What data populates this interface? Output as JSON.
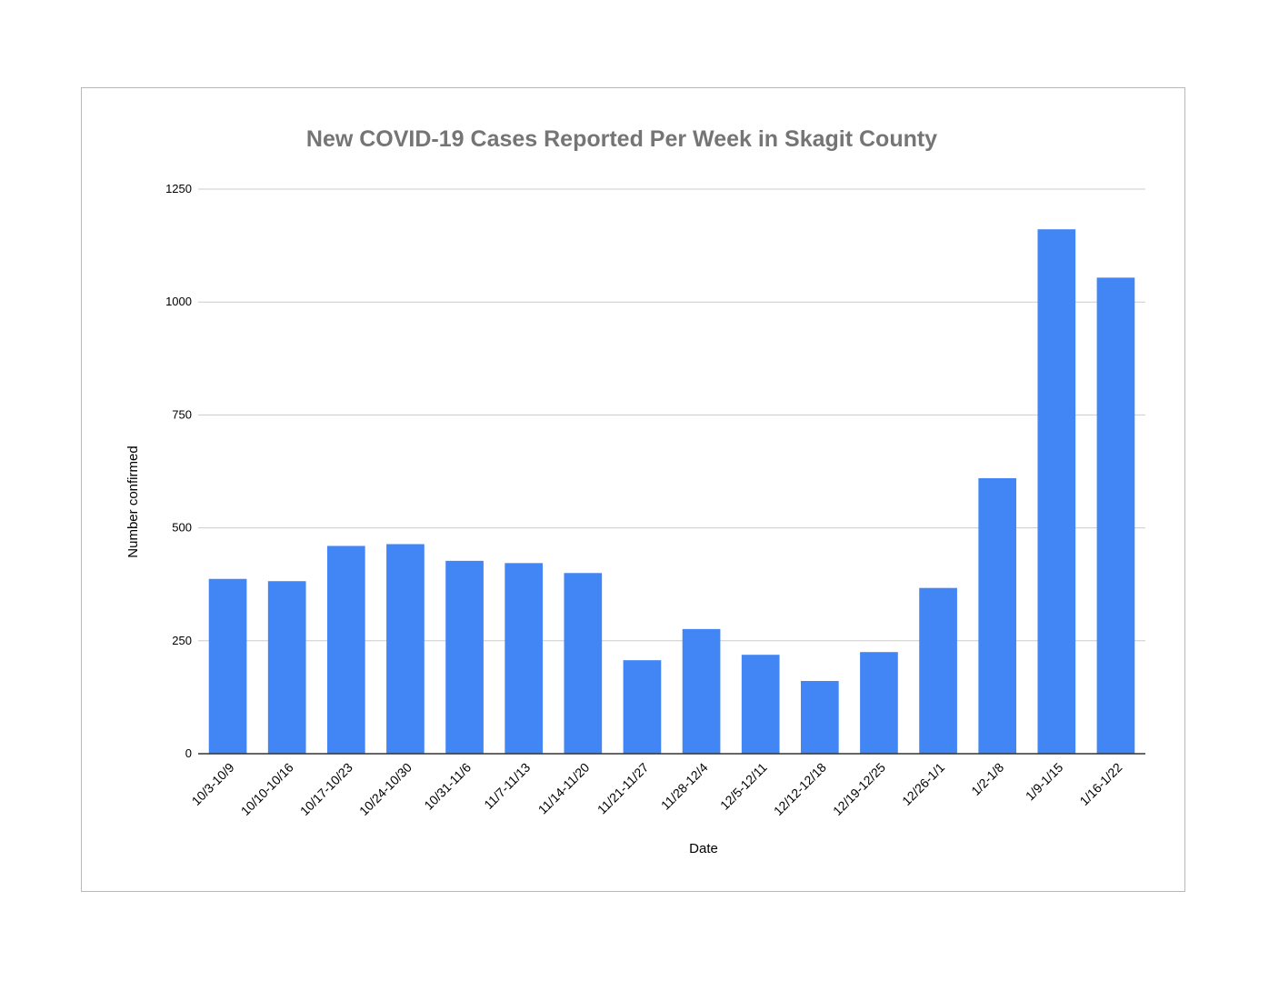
{
  "chart_data": {
    "type": "bar",
    "title": "New COVID-19 Cases Reported Per Week in Skagit County",
    "xlabel": "Date",
    "ylabel": "Number confirmed",
    "ylim": [
      0,
      1250
    ],
    "yticks": [
      0,
      250,
      500,
      750,
      1000,
      1250
    ],
    "grid": true,
    "legend": "none",
    "categories": [
      "10/3-10/9",
      "10/10-10/16",
      "10/17-10/23",
      "10/24-10/30",
      "10/31-11/6",
      "11/7-11/13",
      "11/14-11/20",
      "11/21-11/27",
      "11/28-12/4",
      "12/5-12/11",
      "12/12-12/18",
      "12/19-12/25",
      "12/26-1/1",
      "1/2-1/8",
      "1/9-1/15",
      "1/16-1/22"
    ],
    "values": [
      387,
      382,
      460,
      464,
      427,
      422,
      400,
      207,
      276,
      219,
      161,
      225,
      367,
      610,
      1161,
      1054
    ],
    "colors": {
      "bar": "#4285f4",
      "grid": "#cccccc",
      "axis": "#333333",
      "title": "#757575",
      "frame": "#b8b8b8"
    }
  }
}
